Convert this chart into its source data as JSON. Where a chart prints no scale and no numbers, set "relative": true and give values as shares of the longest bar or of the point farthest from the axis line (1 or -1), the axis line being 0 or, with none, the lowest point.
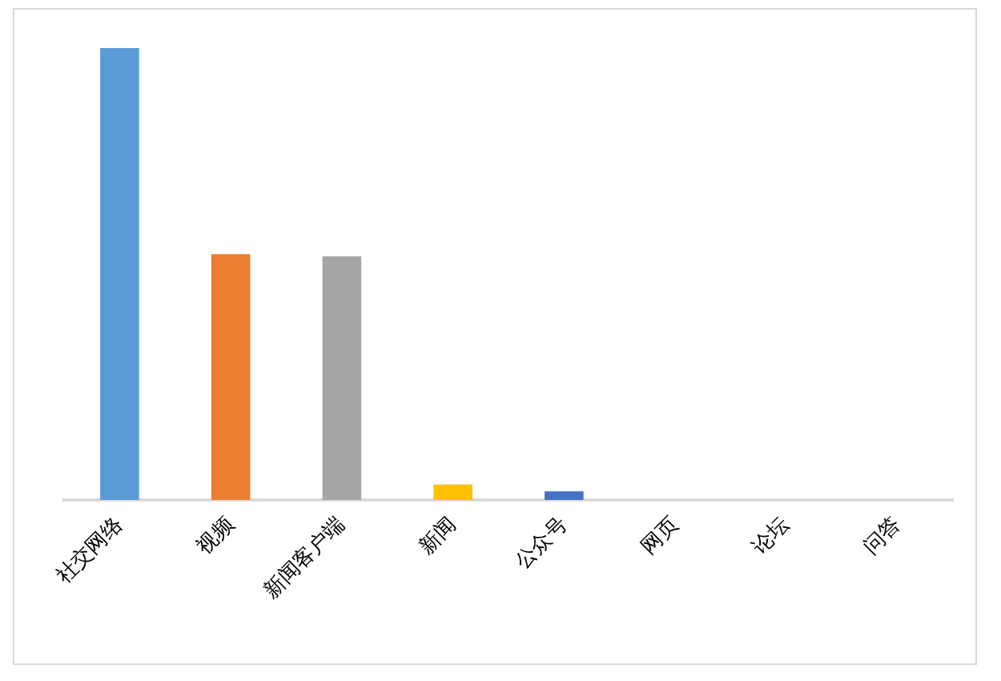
{
  "chart_data": {
    "type": "bar",
    "relative": true,
    "categories": [
      "社交网络",
      "视频",
      "新闻客户端",
      "新闻",
      "公众号",
      "网页",
      "论坛",
      "问答"
    ],
    "values": [
      1,
      0.544,
      0.539,
      0.034,
      0.019,
      0,
      0,
      0
    ],
    "colors": [
      "#5b9bd5",
      "#ed7d31",
      "#a5a5a5",
      "#ffc000",
      "#4472c4",
      "#70ad47",
      "#255e91",
      "#9e480e"
    ],
    "grid": false,
    "legend": false
  }
}
